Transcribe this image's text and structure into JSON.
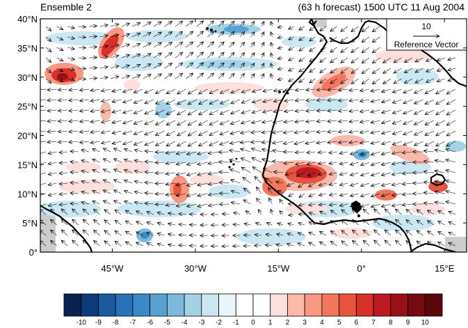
{
  "header": {
    "left_title": "Ensemble 2",
    "right_title": "(63 h forecast) 1500 UTC 11 Aug 2004"
  },
  "map": {
    "lat_labels": [
      "40°N",
      "35°N",
      "30°N",
      "25°N",
      "20°N",
      "15°N",
      "10°N",
      "5°N",
      "0°"
    ],
    "lon_labels": [
      "45°W",
      "30°W",
      "15°W",
      "0°",
      "15°E"
    ],
    "lat_range": [
      0,
      40
    ],
    "lon_range": [
      -58,
      19
    ],
    "land_color": "#ffffff",
    "missing_color": "#cccccc"
  },
  "reference_vector": {
    "magnitude": "10",
    "label": "Reference Vector"
  },
  "colorbar": {
    "labels": [
      "-10",
      "-9",
      "-8",
      "-7",
      "-6",
      "-5",
      "-4",
      "-3",
      "-2",
      "-1",
      "0",
      "1",
      "2",
      "3",
      "4",
      "5",
      "6",
      "7",
      "8",
      "9",
      "10"
    ],
    "colors": [
      "#08214f",
      "#0c3c7a",
      "#1b5a9e",
      "#2a72b8",
      "#3a88c6",
      "#5aa1d2",
      "#7cb9dc",
      "#a3d2e6",
      "#cbe7f1",
      "#eaf6fb",
      "#ffffff",
      "#ffffff",
      "#fde0dd",
      "#fbb9ac",
      "#f99882",
      "#f3775c",
      "#e85440",
      "#d6312b",
      "#bb1b21",
      "#991016",
      "#750b10",
      "#5a070b"
    ]
  }
}
